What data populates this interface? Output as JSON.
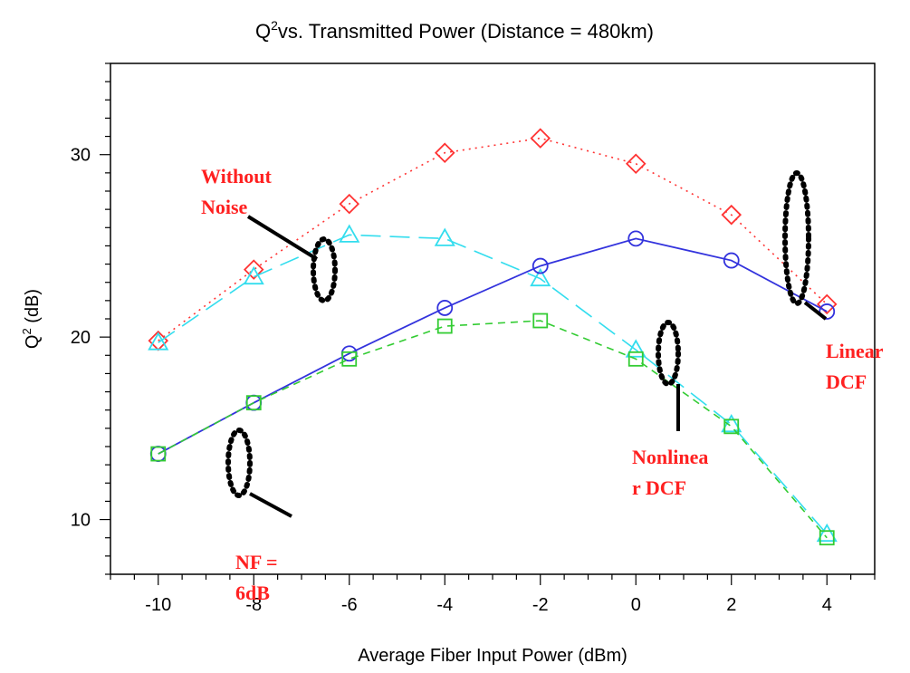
{
  "chart_data": {
    "type": "line",
    "title": "vs. Transmitted Power (Distance = 480km)",
    "title_q": "Q",
    "title_sup": "2",
    "xlabel": "Average Fiber Input Power (dBm)",
    "ylabel_q": "Q",
    "ylabel_sup": "2",
    "ylabel_rest": " (dB)",
    "xlim": [
      -11,
      5
    ],
    "ylim": [
      7,
      35
    ],
    "xticks": [
      -10,
      -8,
      -6,
      -4,
      -2,
      0,
      2,
      4
    ],
    "yticks": [
      10,
      20,
      30
    ],
    "grid": false,
    "series": [
      {
        "color": "#ff3333",
        "marker": "diamond",
        "line": "dotted",
        "x": [
          -10,
          -8,
          -6,
          -4,
          -2,
          0,
          2,
          4
        ],
        "y": [
          19.8,
          23.7,
          27.3,
          30.1,
          30.9,
          29.5,
          26.7,
          21.8
        ]
      },
      {
        "color": "#33ddee",
        "marker": "triangle",
        "line": "longdash",
        "x": [
          -10,
          -8,
          -6,
          -4,
          -2,
          0,
          2,
          4
        ],
        "y": [
          19.7,
          23.3,
          25.6,
          25.4,
          23.2,
          19.3,
          15.2,
          9.2
        ]
      },
      {
        "color": "#3333dd",
        "marker": "circle",
        "line": "solid",
        "x": [
          -10,
          -8,
          -6,
          -4,
          -2,
          0,
          2,
          4
        ],
        "y": [
          13.6,
          16.4,
          19.1,
          21.6,
          23.9,
          25.4,
          24.2,
          21.4
        ]
      },
      {
        "color": "#33cc33",
        "marker": "square",
        "line": "dashed",
        "x": [
          -10,
          -8,
          -6,
          -4,
          -2,
          0,
          2,
          4
        ],
        "y": [
          13.6,
          16.4,
          18.8,
          20.6,
          20.9,
          18.8,
          15.1,
          9.0
        ]
      }
    ],
    "annotations": [
      {
        "lines": [
          "Without",
          "Noise"
        ],
        "color": "#ff2020"
      },
      {
        "lines": [
          "Linear",
          "DCF"
        ],
        "color": "#ff2020"
      },
      {
        "lines": [
          "Nonlinea",
          "r DCF"
        ],
        "color": "#ff2020"
      },
      {
        "lines": [
          "NF =",
          "6dB"
        ],
        "color": "#ff2020"
      }
    ]
  }
}
